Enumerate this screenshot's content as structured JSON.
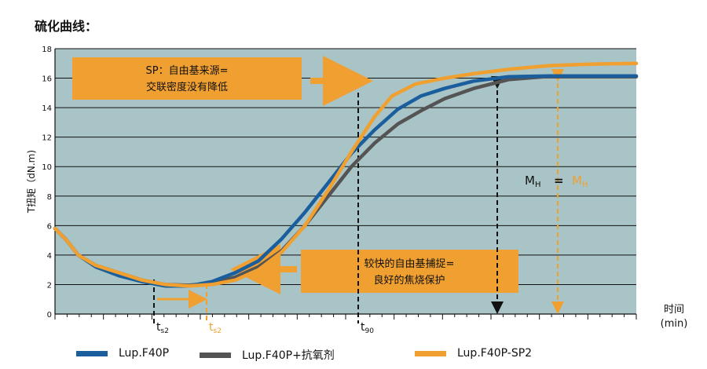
{
  "title": "硫化曲线：",
  "chart_data": {
    "type": "line",
    "ylabel": "T扭矩（dN.m)",
    "xlabel_line1": "时间",
    "xlabel_line2": "(min)",
    "ylim": [
      0,
      18
    ],
    "yticks": [
      "0",
      "2",
      "4",
      "6",
      "8",
      "10",
      "12",
      "14",
      "16",
      "18"
    ],
    "xlim": [
      0,
      100
    ],
    "grid": "horizontal",
    "series": [
      {
        "name": "Lup.F40P",
        "color": "#1a5e9e",
        "points": [
          [
            0,
            5.8
          ],
          [
            2,
            5.0
          ],
          [
            4,
            4.0
          ],
          [
            7,
            3.2
          ],
          [
            11,
            2.6
          ],
          [
            15,
            2.2
          ],
          [
            19,
            1.9
          ],
          [
            23,
            1.9
          ],
          [
            27,
            2.2
          ],
          [
            31,
            2.8
          ],
          [
            35,
            3.6
          ],
          [
            39,
            5.1
          ],
          [
            43,
            6.9
          ],
          [
            47,
            8.9
          ],
          [
            51,
            10.9
          ],
          [
            55,
            12.5
          ],
          [
            59,
            13.9
          ],
          [
            63,
            14.8
          ],
          [
            67,
            15.3
          ],
          [
            72,
            15.8
          ],
          [
            78,
            16.1
          ],
          [
            85,
            16.15
          ],
          [
            100,
            16.15
          ]
        ]
      },
      {
        "name": "Lup.F40P+抗氧剂",
        "color": "#545454",
        "points": [
          [
            0,
            5.8
          ],
          [
            2,
            5.0
          ],
          [
            4,
            4.0
          ],
          [
            7,
            3.3
          ],
          [
            11,
            2.8
          ],
          [
            15,
            2.3
          ],
          [
            19,
            2.0
          ],
          [
            23,
            1.95
          ],
          [
            27,
            2.1
          ],
          [
            31,
            2.5
          ],
          [
            35,
            3.2
          ],
          [
            39,
            4.3
          ],
          [
            43,
            6.0
          ],
          [
            47,
            8.0
          ],
          [
            51,
            10.0
          ],
          [
            55,
            11.6
          ],
          [
            59,
            12.9
          ],
          [
            63,
            13.8
          ],
          [
            67,
            14.6
          ],
          [
            72,
            15.3
          ],
          [
            78,
            15.9
          ],
          [
            84,
            16.1
          ],
          [
            100,
            16.1
          ]
        ]
      },
      {
        "name": "Lup.F40P-SP2",
        "color": "#f0a030",
        "points": [
          [
            0,
            5.8
          ],
          [
            2,
            5.0
          ],
          [
            4,
            4.0
          ],
          [
            7,
            3.3
          ],
          [
            11,
            2.8
          ],
          [
            15,
            2.3
          ],
          [
            19,
            2.0
          ],
          [
            23,
            1.9
          ],
          [
            27,
            2.0
          ],
          [
            31,
            2.3
          ],
          [
            35,
            3.0
          ],
          [
            39,
            4.2
          ],
          [
            43,
            6.0
          ],
          [
            47,
            8.4
          ],
          [
            51,
            11.0
          ],
          [
            55,
            13.4
          ],
          [
            58,
            14.8
          ],
          [
            62,
            15.6
          ],
          [
            67,
            16.0
          ],
          [
            72,
            16.3
          ],
          [
            78,
            16.6
          ],
          [
            85,
            16.85
          ],
          [
            92,
            16.95
          ],
          [
            100,
            17.0
          ]
        ]
      }
    ],
    "markers": {
      "ts2_blue": "t",
      "ts2_blue_sub": "s2",
      "ts2_orange": "t",
      "ts2_orange_sub": "s2",
      "t90": "t",
      "t90_sub": "90",
      "mh_black": "M",
      "mh_black_sub": "H",
      "mh_eq": "=",
      "mh_orange": "M",
      "mh_orange_sub": "H"
    },
    "annotations": {
      "sp_line1": "SP：自由基来源=",
      "sp_line2": "交联密度没有降低",
      "scav_line1": "较快的自由基捕捉=",
      "scav_line2": "良好的焦烧保护"
    },
    "colors": {
      "plot_bg": "#a9c4c6",
      "orange_box": "#f0a030",
      "grid": "#111111"
    }
  }
}
